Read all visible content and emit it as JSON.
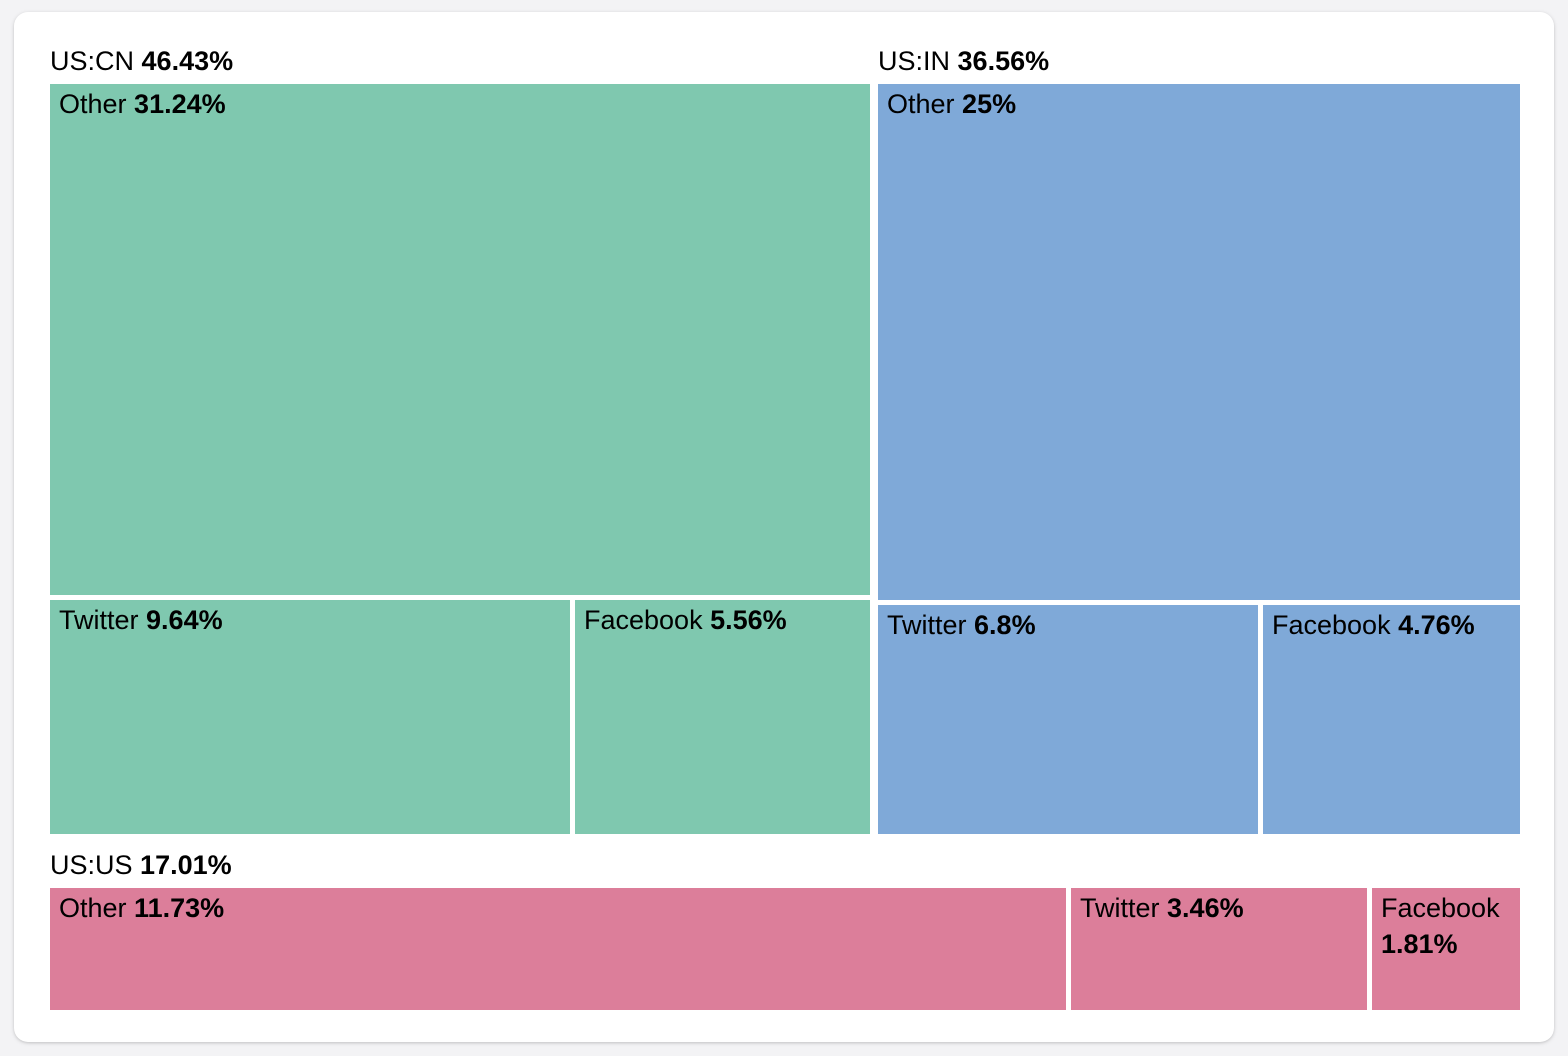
{
  "page": {
    "background_color": "#f3f3f5",
    "card_color": "#ffffff",
    "text_color": "#000000"
  },
  "chart_data": {
    "type": "treemap",
    "unit": "%",
    "legend_position": "none",
    "groups": [
      {
        "name": "US:CN",
        "value": 46.43,
        "value_label": "46.43%",
        "color": "#7fc8af",
        "children": [
          {
            "name": "Other",
            "value": 31.24,
            "value_label": "31.24%"
          },
          {
            "name": "Twitter",
            "value": 9.64,
            "value_label": "9.64%"
          },
          {
            "name": "Facebook",
            "value": 5.56,
            "value_label": "5.56%"
          }
        ]
      },
      {
        "name": "US:IN",
        "value": 36.56,
        "value_label": "36.56%",
        "color": "#7fa9d8",
        "children": [
          {
            "name": "Other",
            "value": 25,
            "value_label": "25%"
          },
          {
            "name": "Twitter",
            "value": 6.8,
            "value_label": "6.8%"
          },
          {
            "name": "Facebook",
            "value": 4.76,
            "value_label": "4.76%"
          }
        ]
      },
      {
        "name": "US:US",
        "value": 17.01,
        "value_label": "17.01%",
        "color": "#dc7e9a",
        "children": [
          {
            "name": "Other",
            "value": 11.73,
            "value_label": "11.73%"
          },
          {
            "name": "Twitter",
            "value": 3.46,
            "value_label": "3.46%"
          },
          {
            "name": "Facebook",
            "value": 1.81,
            "value_label": "1.81%"
          }
        ]
      }
    ]
  }
}
